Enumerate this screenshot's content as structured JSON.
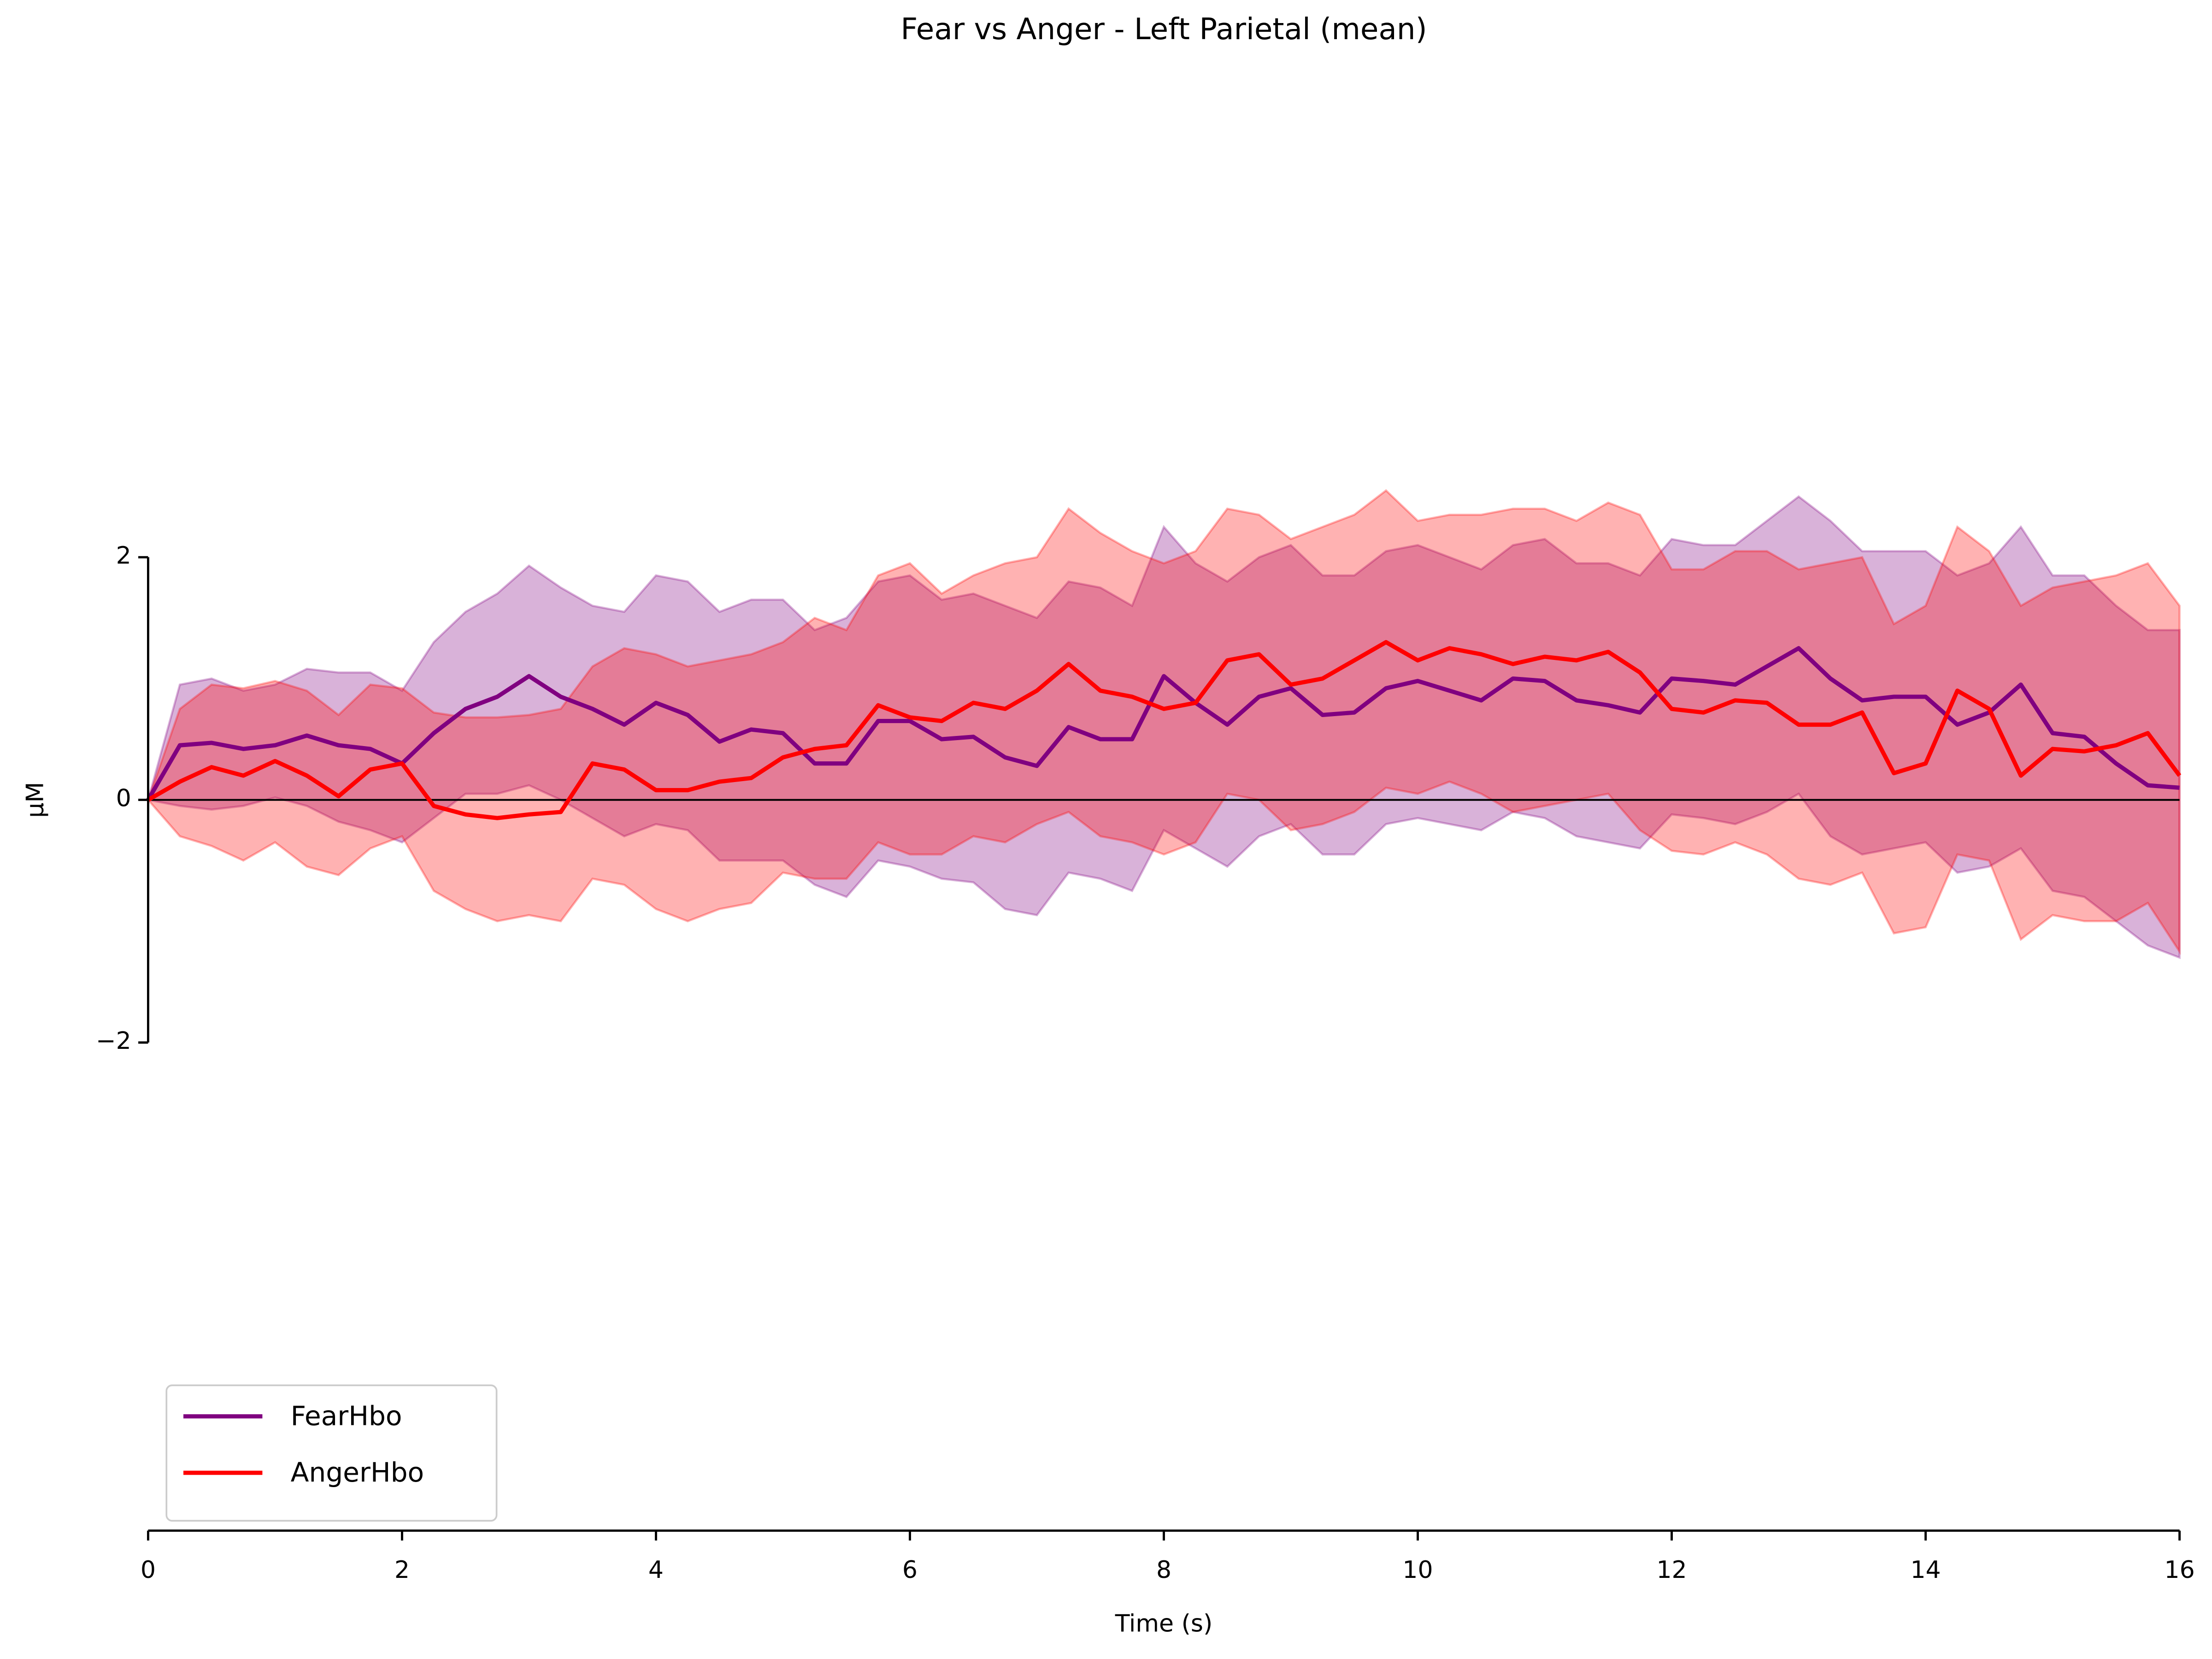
{
  "chart_data": {
    "type": "line",
    "title": "Fear vs Anger - Left Parietal (mean)",
    "xlabel": "Time (s)",
    "ylabel": "µM",
    "xlim": [
      0,
      16
    ],
    "xticks": [
      0,
      2,
      4,
      6,
      8,
      10,
      12,
      14,
      16
    ],
    "ylim": [
      -6,
      6
    ],
    "yticks": [
      {
        "value": -2,
        "label": "−2"
      },
      0,
      2
    ],
    "hline": 0,
    "legend": "lower left",
    "x": [
      0,
      0.25,
      0.5,
      0.75,
      1,
      1.25,
      1.5,
      1.75,
      2,
      2.25,
      2.5,
      2.75,
      3,
      3.25,
      3.5,
      3.75,
      4,
      4.25,
      4.5,
      4.75,
      5,
      5.25,
      5.5,
      5.75,
      6,
      6.25,
      6.5,
      6.75,
      7,
      7.25,
      7.5,
      7.75,
      8,
      8.25,
      8.5,
      8.75,
      9,
      9.25,
      9.5,
      9.75,
      10,
      10.25,
      10.5,
      10.75,
      11,
      11.25,
      11.5,
      11.75,
      12,
      12.25,
      12.5,
      12.75,
      13,
      13.25,
      13.5,
      13.75,
      14,
      14.25,
      14.5,
      14.75,
      15,
      15.25,
      15.5,
      15.75,
      16
    ],
    "series": [
      {
        "name": "FearHbo",
        "color": "#800080",
        "values": [
          0,
          0.45,
          0.47,
          0.42,
          0.45,
          0.53,
          0.45,
          0.42,
          0.3,
          0.55,
          0.75,
          0.85,
          1.02,
          0.85,
          0.75,
          0.62,
          0.8,
          0.7,
          0.48,
          0.58,
          0.55,
          0.3,
          0.3,
          0.65,
          0.65,
          0.5,
          0.52,
          0.35,
          0.28,
          0.6,
          0.5,
          0.5,
          1.02,
          0.8,
          0.62,
          0.85,
          0.92,
          0.7,
          0.72,
          0.92,
          0.98,
          0.9,
          0.82,
          1.0,
          0.98,
          0.82,
          0.78,
          0.72,
          1.0,
          0.98,
          0.95,
          1.1,
          1.25,
          1.0,
          0.82,
          0.85,
          0.85,
          0.62,
          0.72,
          0.95,
          0.55,
          0.52,
          0.3,
          0.12,
          0.1
        ],
        "upper": [
          0,
          0.95,
          1.0,
          0.9,
          0.95,
          1.08,
          1.05,
          1.05,
          0.9,
          1.3,
          1.55,
          1.7,
          1.93,
          1.75,
          1.6,
          1.55,
          1.85,
          1.8,
          1.55,
          1.65,
          1.65,
          1.4,
          1.5,
          1.8,
          1.85,
          1.65,
          1.7,
          1.6,
          1.5,
          1.8,
          1.75,
          1.6,
          2.25,
          1.95,
          1.8,
          2.0,
          2.1,
          1.85,
          1.85,
          2.05,
          2.1,
          2.0,
          1.9,
          2.1,
          2.15,
          1.95,
          1.95,
          1.85,
          2.15,
          2.1,
          2.1,
          2.3,
          2.5,
          2.3,
          2.05,
          2.05,
          2.05,
          1.85,
          1.95,
          2.25,
          1.85,
          1.85,
          1.6,
          1.4,
          1.4
        ],
        "lower": [
          0,
          -0.05,
          -0.08,
          -0.05,
          0.02,
          -0.05,
          -0.18,
          -0.25,
          -0.35,
          -0.15,
          0.05,
          0.05,
          0.12,
          0.0,
          -0.15,
          -0.3,
          -0.2,
          -0.25,
          -0.5,
          -0.5,
          -0.5,
          -0.7,
          -0.8,
          -0.5,
          -0.55,
          -0.65,
          -0.68,
          -0.9,
          -0.95,
          -0.6,
          -0.65,
          -0.75,
          -0.25,
          -0.4,
          -0.55,
          -0.3,
          -0.2,
          -0.45,
          -0.45,
          -0.2,
          -0.15,
          -0.2,
          -0.25,
          -0.1,
          -0.15,
          -0.3,
          -0.35,
          -0.4,
          -0.12,
          -0.15,
          -0.2,
          -0.1,
          0.05,
          -0.3,
          -0.45,
          -0.4,
          -0.35,
          -0.6,
          -0.55,
          -0.4,
          -0.75,
          -0.8,
          -1.0,
          -1.2,
          -1.3
        ]
      },
      {
        "name": "AngerHbo",
        "color": "#ff0000",
        "values": [
          0,
          0.15,
          0.27,
          0.2,
          0.32,
          0.2,
          0.03,
          0.25,
          0.3,
          -0.05,
          -0.12,
          -0.15,
          -0.12,
          -0.1,
          0.3,
          0.25,
          0.08,
          0.08,
          0.15,
          0.18,
          0.35,
          0.42,
          0.45,
          0.78,
          0.68,
          0.65,
          0.8,
          0.75,
          0.9,
          1.12,
          0.9,
          0.85,
          0.75,
          0.8,
          1.15,
          1.2,
          0.95,
          1.0,
          1.15,
          1.3,
          1.15,
          1.25,
          1.2,
          1.12,
          1.18,
          1.15,
          1.22,
          1.05,
          0.75,
          0.72,
          0.82,
          0.8,
          0.62,
          0.62,
          0.72,
          0.22,
          0.3,
          0.9,
          0.75,
          0.2,
          0.42,
          0.4,
          0.45,
          0.55,
          0.2
        ],
        "upper": [
          0,
          0.75,
          0.95,
          0.92,
          0.98,
          0.9,
          0.7,
          0.95,
          0.92,
          0.72,
          0.68,
          0.68,
          0.7,
          0.75,
          1.1,
          1.25,
          1.2,
          1.1,
          1.15,
          1.2,
          1.3,
          1.5,
          1.4,
          1.85,
          1.95,
          1.7,
          1.85,
          1.95,
          2.0,
          2.4,
          2.2,
          2.05,
          1.95,
          2.05,
          2.4,
          2.35,
          2.15,
          2.25,
          2.35,
          2.55,
          2.3,
          2.35,
          2.35,
          2.4,
          2.4,
          2.3,
          2.45,
          2.35,
          1.9,
          1.9,
          2.05,
          2.05,
          1.9,
          1.95,
          2.0,
          1.45,
          1.6,
          2.25,
          2.05,
          1.6,
          1.75,
          1.8,
          1.85,
          1.95,
          1.6
        ],
        "lower": [
          0,
          -0.3,
          -0.38,
          -0.5,
          -0.35,
          -0.55,
          -0.62,
          -0.4,
          -0.3,
          -0.75,
          -0.9,
          -1.0,
          -0.95,
          -1.0,
          -0.65,
          -0.7,
          -0.9,
          -1.0,
          -0.9,
          -0.85,
          -0.6,
          -0.65,
          -0.65,
          -0.35,
          -0.45,
          -0.45,
          -0.3,
          -0.35,
          -0.2,
          -0.1,
          -0.3,
          -0.35,
          -0.45,
          -0.35,
          0.05,
          0.0,
          -0.25,
          -0.2,
          -0.1,
          0.1,
          0.05,
          0.15,
          0.05,
          -0.1,
          -0.05,
          0.0,
          0.05,
          -0.25,
          -0.42,
          -0.45,
          -0.35,
          -0.45,
          -0.65,
          -0.7,
          -0.6,
          -1.1,
          -1.05,
          -0.45,
          -0.5,
          -1.15,
          -0.95,
          -1.0,
          -1.0,
          -0.85,
          -1.25
        ]
      }
    ]
  }
}
